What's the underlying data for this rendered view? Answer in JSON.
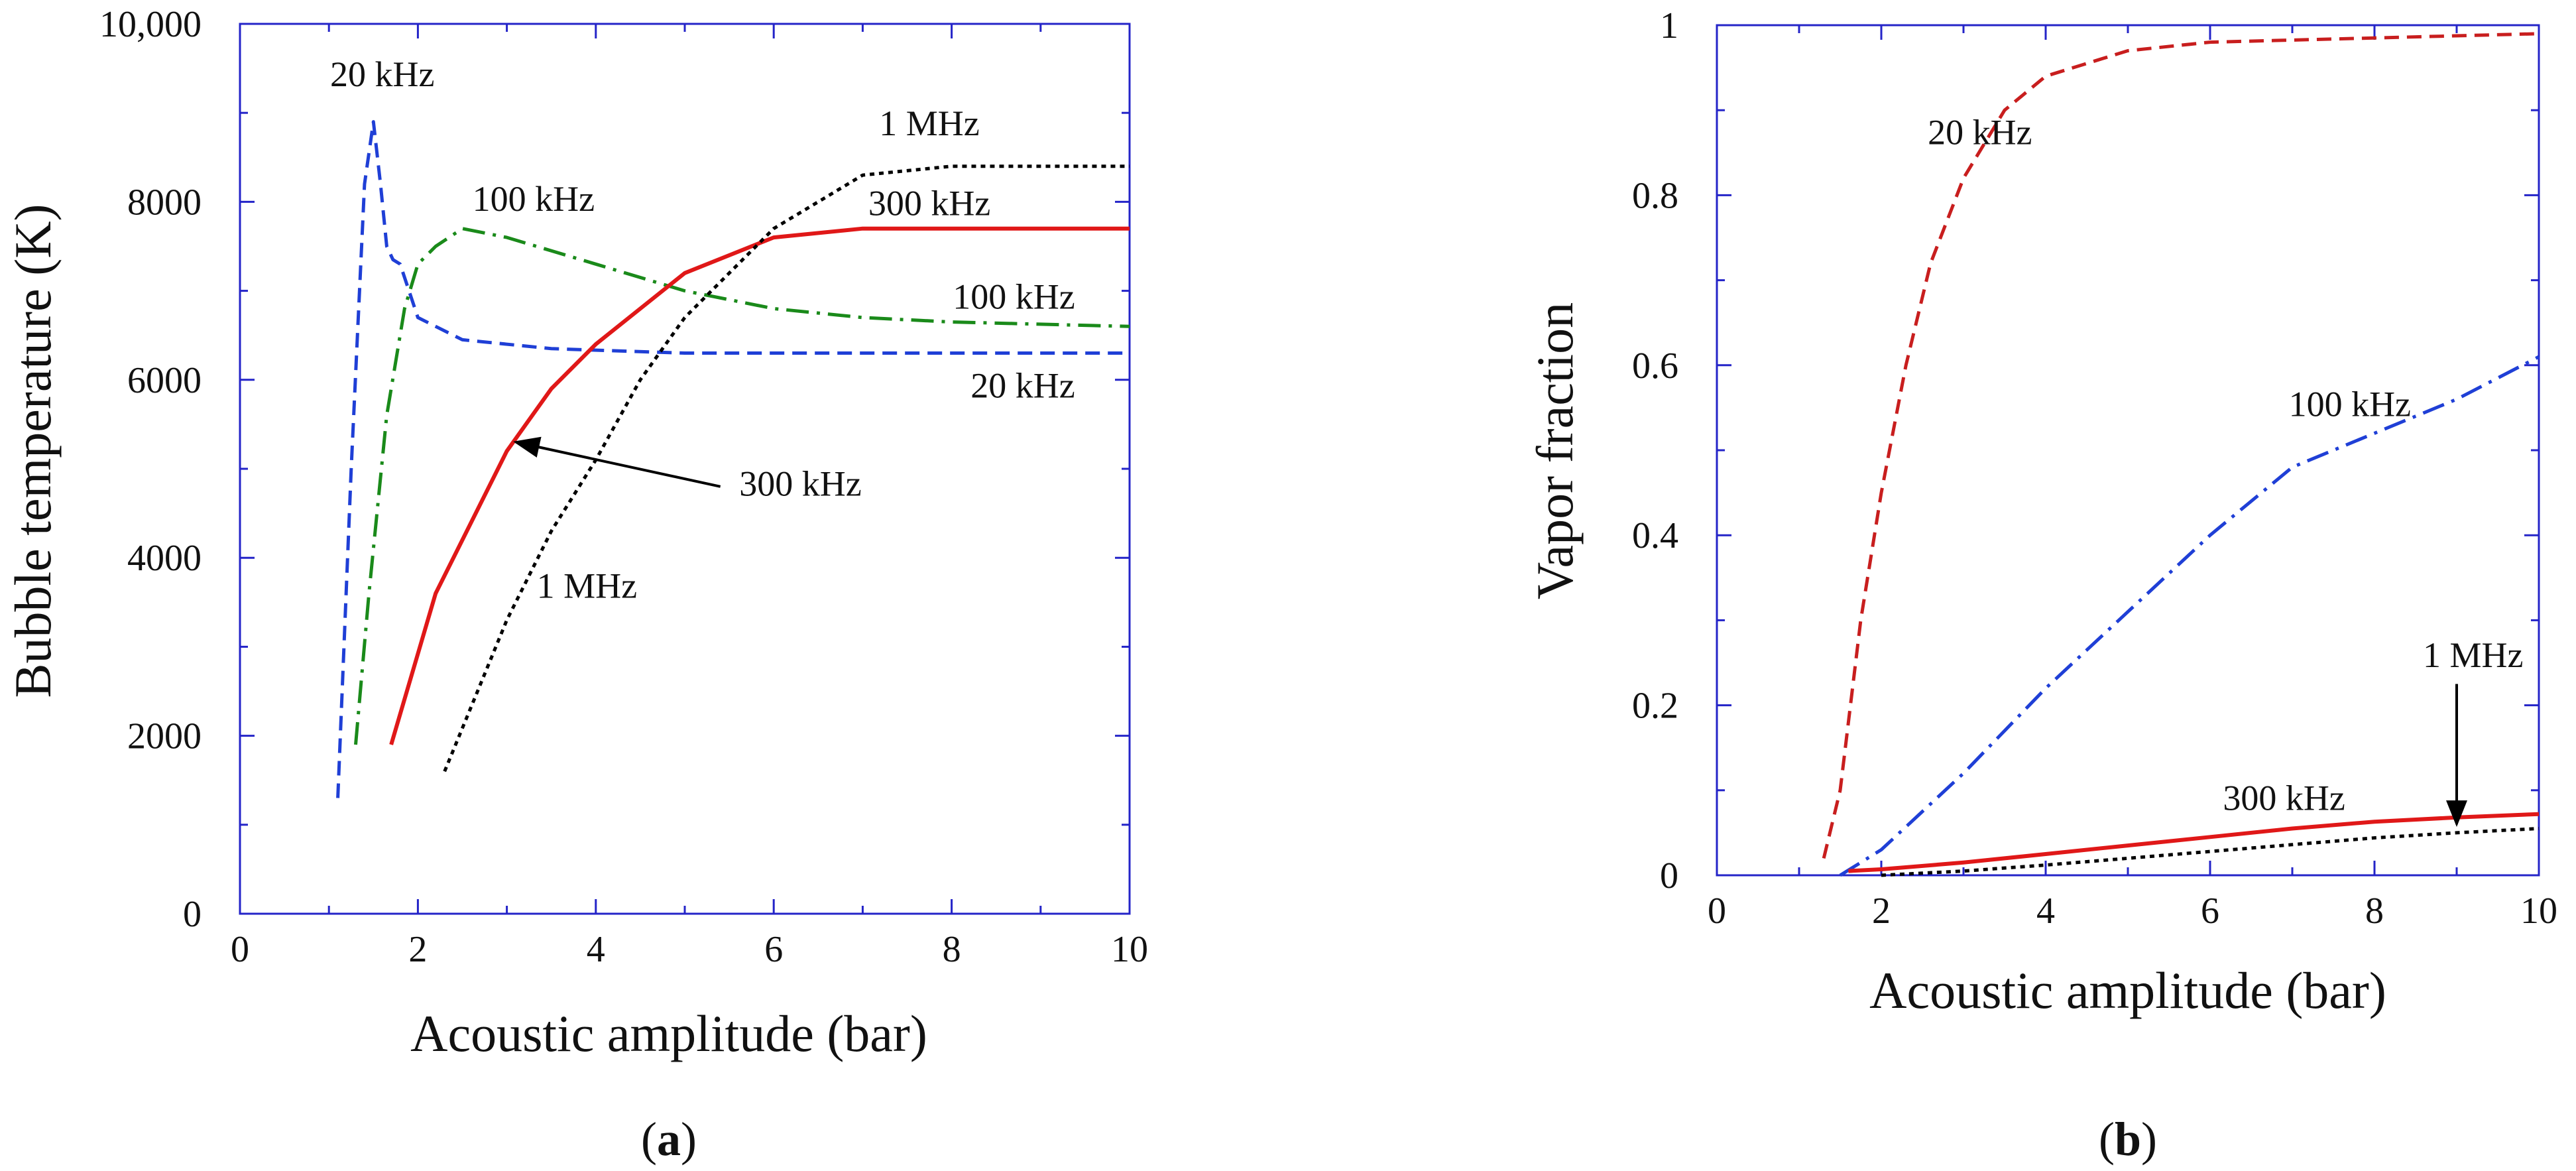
{
  "chart_data": [
    {
      "type": "line",
      "panel_label": {
        "open": "(",
        "letter": "a",
        "close": ")"
      },
      "xlabel": "Acoustic amplitude (bar)",
      "ylabel": "Bubble temperature (K)",
      "xlim": [
        0,
        10
      ],
      "ylim": [
        0,
        10000
      ],
      "xticks": [
        0,
        2,
        4,
        6,
        8,
        10
      ],
      "yticks": [
        0,
        2000,
        4000,
        6000,
        8000,
        10000
      ],
      "ytick_labels": [
        "0",
        "2000",
        "4000",
        "6000",
        "8000",
        "10,000"
      ],
      "grid": false,
      "series": [
        {
          "name": "20 kHz",
          "color": "#1f3fd6",
          "dash": "dashed",
          "x": [
            1.1,
            1.25,
            1.4,
            1.5,
            1.58,
            1.65,
            1.72,
            1.8,
            2.0,
            2.5,
            3.5,
            5,
            6,
            10
          ],
          "y": [
            1300,
            5000,
            8200,
            8900,
            8200,
            7500,
            7350,
            7300,
            6700,
            6450,
            6350,
            6300,
            6300,
            6300
          ]
        },
        {
          "name": "100 kHz",
          "color": "#1a8a1a",
          "dash": "dashdot",
          "x": [
            1.3,
            1.45,
            1.65,
            1.85,
            2.0,
            2.2,
            2.5,
            3.0,
            4.0,
            5.0,
            6.0,
            7.0,
            8.0,
            10.0
          ],
          "y": [
            1900,
            3600,
            5600,
            6800,
            7300,
            7500,
            7700,
            7600,
            7300,
            7000,
            6800,
            6700,
            6650,
            6600
          ]
        },
        {
          "name": "300 kHz",
          "color": "#e01818",
          "dash": "solid",
          "x": [
            1.7,
            2.2,
            3.0,
            3.5,
            4.0,
            5.0,
            6.0,
            7.0,
            8.0,
            10.0
          ],
          "y": [
            1900,
            3600,
            5200,
            5900,
            6400,
            7200,
            7600,
            7700,
            7700,
            7700
          ]
        },
        {
          "name": "1 MHz",
          "color": "#000000",
          "dash": "dotted",
          "x": [
            2.3,
            3.0,
            3.5,
            4.0,
            4.5,
            5.0,
            6.0,
            7.0,
            8.0,
            10.0
          ],
          "y": [
            1600,
            3300,
            4300,
            5100,
            6000,
            6700,
            7700,
            8300,
            8400,
            8400
          ]
        }
      ],
      "annotations": [
        {
          "text": "20 kHz",
          "x": 1.6,
          "y": 9300
        },
        {
          "text": "100 kHz",
          "x": 3.3,
          "y": 7900
        },
        {
          "text": "1 MHz",
          "x": 7.75,
          "y": 8750
        },
        {
          "text": "300 kHz",
          "x": 7.75,
          "y": 7850
        },
        {
          "text": "100 kHz",
          "x": 8.7,
          "y": 6800
        },
        {
          "text": "20 kHz",
          "x": 8.8,
          "y": 5800
        },
        {
          "text": "300 kHz",
          "x": 6.3,
          "y": 4700
        },
        {
          "text": "1 MHz",
          "x": 3.9,
          "y": 3550
        }
      ],
      "arrows": [
        {
          "from": [
            5.4,
            4800
          ],
          "to": [
            3.1,
            5300
          ]
        }
      ]
    },
    {
      "type": "line",
      "panel_label": {
        "open": "(",
        "letter": "b",
        "close": ")"
      },
      "xlabel": "Acoustic amplitude (bar)",
      "ylabel": "Vapor fraction",
      "xlim": [
        0,
        10
      ],
      "ylim": [
        0,
        1
      ],
      "xticks": [
        0,
        2,
        4,
        6,
        8,
        10
      ],
      "yticks": [
        0,
        0.2,
        0.4,
        0.6,
        0.8,
        1
      ],
      "ytick_labels": [
        "0",
        "0.2",
        "0.4",
        "0.6",
        "0.8",
        "1"
      ],
      "grid": false,
      "series": [
        {
          "name": "20 kHz",
          "color": "#c81e1e",
          "dash": "dashed",
          "x": [
            1.3,
            1.5,
            1.75,
            2.0,
            2.3,
            2.6,
            3.0,
            3.5,
            4.0,
            5.0,
            6.0,
            8.0,
            10.0
          ],
          "y": [
            0.02,
            0.1,
            0.3,
            0.45,
            0.6,
            0.72,
            0.82,
            0.9,
            0.94,
            0.97,
            0.98,
            0.985,
            0.99
          ]
        },
        {
          "name": "100 kHz",
          "color": "#1f3fd6",
          "dash": "dashdot",
          "x": [
            1.5,
            2.0,
            3.0,
            4.0,
            5.0,
            6.0,
            7.0,
            8.0,
            9.0,
            10.0
          ],
          "y": [
            0.0,
            0.03,
            0.12,
            0.22,
            0.31,
            0.4,
            0.48,
            0.52,
            0.56,
            0.61
          ]
        },
        {
          "name": "300 kHz",
          "color": "#e01818",
          "dash": "solid",
          "x": [
            1.6,
            2.0,
            3.0,
            4.0,
            5.0,
            6.0,
            7.0,
            8.0,
            9.0,
            10.0
          ],
          "y": [
            0.005,
            0.007,
            0.015,
            0.025,
            0.035,
            0.045,
            0.055,
            0.063,
            0.068,
            0.072
          ]
        },
        {
          "name": "1 MHz",
          "color": "#000000",
          "dash": "dotted",
          "x": [
            2.0,
            3.0,
            4.0,
            5.0,
            6.0,
            7.0,
            8.0,
            9.0,
            10.0
          ],
          "y": [
            0.0,
            0.005,
            0.012,
            0.02,
            0.028,
            0.036,
            0.044,
            0.05,
            0.055
          ]
        }
      ],
      "annotations": [
        {
          "text": "20 kHz",
          "x": 3.2,
          "y": 0.86
        },
        {
          "text": "100 kHz",
          "x": 7.7,
          "y": 0.54
        },
        {
          "text": "1 MHz",
          "x": 9.2,
          "y": 0.245
        },
        {
          "text": "300 kHz",
          "x": 6.9,
          "y": 0.077
        }
      ],
      "arrows": [
        {
          "from": [
            9.0,
            0.225
          ],
          "to": [
            9.0,
            0.06
          ]
        }
      ]
    }
  ]
}
